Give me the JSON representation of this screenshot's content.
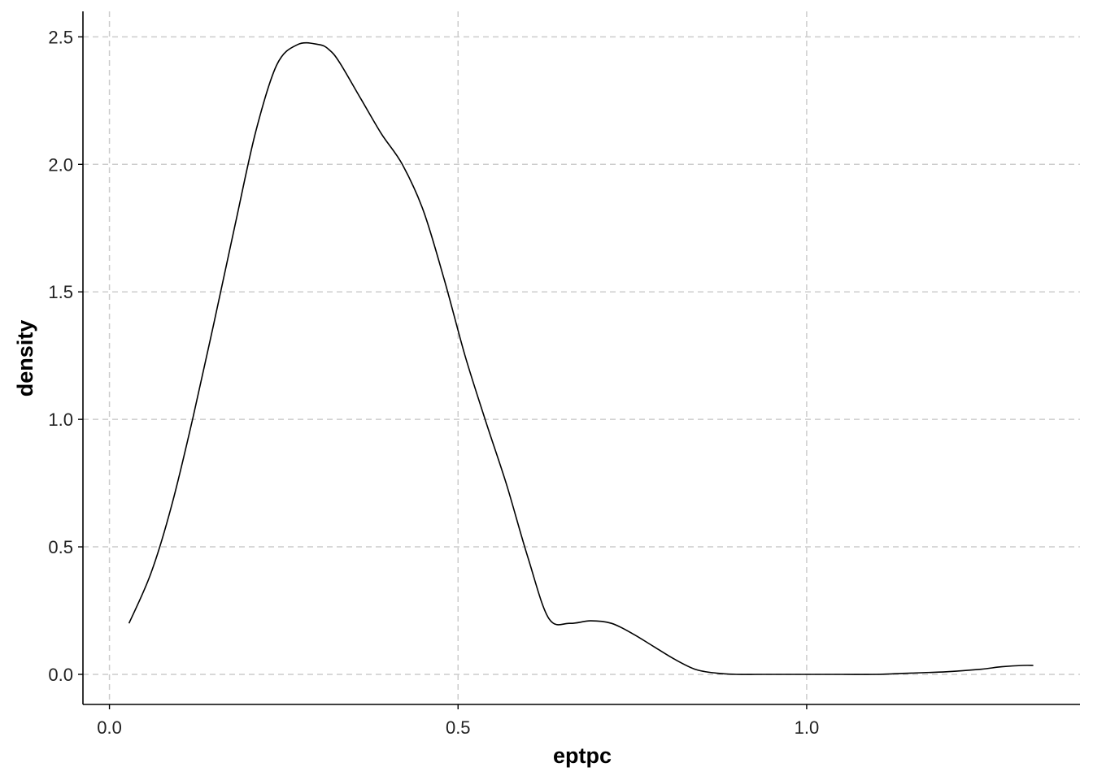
{
  "chart_data": {
    "type": "line",
    "title": "",
    "xlabel": "eptpc",
    "ylabel": "density",
    "xlim": [
      -0.038,
      1.392
    ],
    "ylim": [
      -0.118,
      2.6
    ],
    "x_ticks": [
      0.0,
      0.5,
      1.0
    ],
    "x_tick_labels": [
      "0.0",
      "0.5",
      "1.0"
    ],
    "y_ticks": [
      0.0,
      0.5,
      1.0,
      1.5,
      2.0,
      2.5
    ],
    "y_tick_labels": [
      "0.0",
      "0.5",
      "1.0",
      "1.5",
      "2.0",
      "2.5"
    ],
    "grid": true,
    "grid_style": "dashed",
    "legend": "none",
    "series": [
      {
        "x": [
          0.028,
          0.06,
          0.09,
          0.12,
          0.15,
          0.18,
          0.21,
          0.24,
          0.27,
          0.3,
          0.315,
          0.33,
          0.36,
          0.39,
          0.42,
          0.45,
          0.48,
          0.51,
          0.54,
          0.57,
          0.6,
          0.63,
          0.66,
          0.69,
          0.72,
          0.75,
          0.78,
          0.81,
          0.84,
          0.87,
          0.9,
          0.93,
          0.96,
          1.0,
          1.05,
          1.1,
          1.15,
          1.2,
          1.25,
          1.28,
          1.31,
          1.325
        ],
        "y": [
          0.2,
          0.4,
          0.67,
          1.01,
          1.38,
          1.76,
          2.13,
          2.39,
          2.47,
          2.47,
          2.45,
          2.4,
          2.26,
          2.12,
          2.0,
          1.82,
          1.55,
          1.25,
          0.99,
          0.74,
          0.46,
          0.22,
          0.2,
          0.21,
          0.2,
          0.16,
          0.11,
          0.06,
          0.02,
          0.005,
          0.0,
          0.0,
          0.0,
          0.0,
          0.0,
          0.0,
          0.005,
          0.01,
          0.02,
          0.03,
          0.035,
          0.035
        ]
      }
    ]
  }
}
